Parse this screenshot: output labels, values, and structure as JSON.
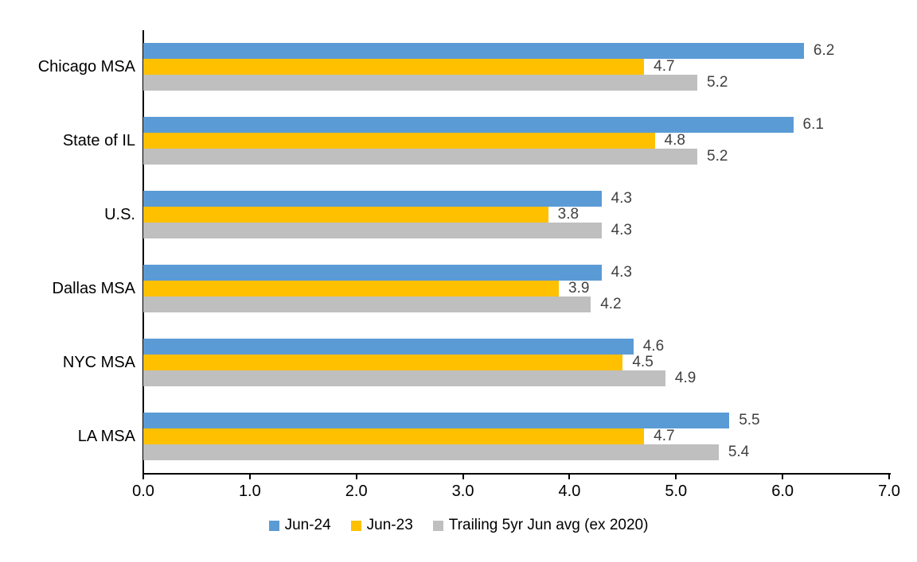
{
  "chart_data": {
    "type": "bar",
    "orientation": "horizontal",
    "title": "",
    "xlabel": "",
    "ylabel": "",
    "categories": [
      "Chicago MSA",
      "State of IL",
      "U.S.",
      "Dallas MSA",
      "NYC MSA",
      "LA MSA"
    ],
    "series": [
      {
        "name": "Jun-24",
        "color": "#5B9BD5",
        "values": [
          6.2,
          6.1,
          4.3,
          4.3,
          4.6,
          5.5
        ]
      },
      {
        "name": "Jun-23",
        "color": "#FFC000",
        "values": [
          4.7,
          4.8,
          3.8,
          3.9,
          4.5,
          4.7
        ]
      },
      {
        "name": "Trailing 5yr Jun avg (ex 2020)",
        "color": "#BFBFBF",
        "values": [
          5.2,
          5.2,
          4.3,
          4.2,
          4.9,
          5.4
        ]
      }
    ],
    "xlim": [
      0,
      7
    ],
    "x_ticks": [
      "0.0",
      "1.0",
      "2.0",
      "3.0",
      "4.0",
      "5.0",
      "6.0",
      "7.0"
    ],
    "value_label_decimals": 1,
    "value_label_color": "#404040",
    "axis_color": "#000000",
    "grid": false,
    "legend_position": "bottom",
    "data_labels": "outside-end"
  }
}
